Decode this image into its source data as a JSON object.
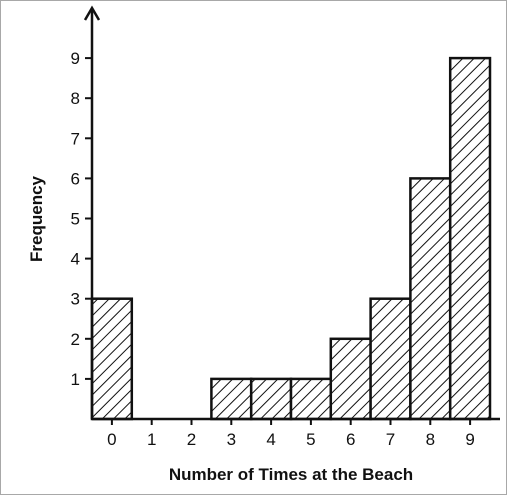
{
  "chart_data": {
    "type": "bar",
    "title": "",
    "xlabel": "Number of Times at the Beach",
    "ylabel": "Frequency",
    "categories": [
      "0",
      "1",
      "2",
      "3",
      "4",
      "5",
      "6",
      "7",
      "8",
      "9"
    ],
    "values": [
      3,
      0,
      0,
      1,
      1,
      1,
      2,
      3,
      6,
      9
    ],
    "yticks": [
      "1",
      "2",
      "3",
      "4",
      "5",
      "6",
      "7",
      "8",
      "9"
    ],
    "ylim": [
      0,
      9
    ],
    "grid": false,
    "bar_fill": "diagonal-hatch",
    "colors": {
      "bar_stroke": "#111111",
      "axis": "#111111",
      "background": "#ffffff"
    }
  }
}
